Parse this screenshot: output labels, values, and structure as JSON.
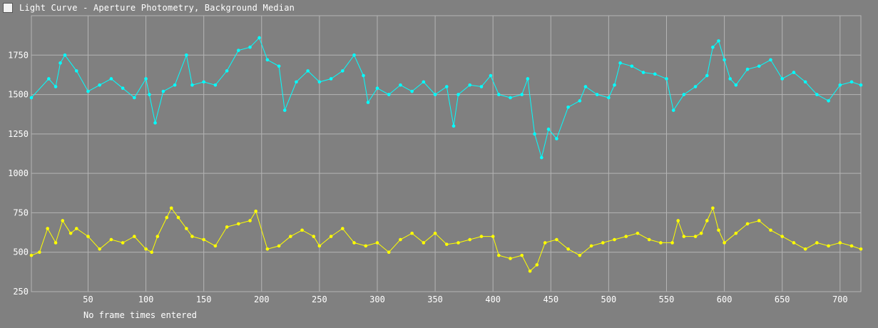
{
  "window": {
    "title": "Light Curve - Aperture Photometry, Background Median"
  },
  "footer": {
    "note": "No frame times entered"
  },
  "colors": {
    "background": "#808080",
    "grid": "#b4b4b4",
    "target": "#00ffff",
    "comparison": "#ffff00",
    "text": "#ffffff"
  },
  "chart_data": {
    "type": "line",
    "title": "Light Curve - Aperture Photometry, Background Median",
    "xlabel": "",
    "ylabel": "",
    "xlim": [
      1,
      718
    ],
    "ylim": [
      250,
      2000
    ],
    "xticks": [
      50,
      100,
      150,
      200,
      250,
      300,
      350,
      400,
      450,
      500,
      550,
      600,
      650,
      700
    ],
    "yticks": [
      250,
      500,
      750,
      1000,
      1250,
      1500,
      1750
    ],
    "grid": true,
    "markers": true,
    "series": [
      {
        "color": "#00ffff",
        "x": [
          1,
          16,
          22,
          26,
          30,
          40,
          50,
          60,
          70,
          80,
          90,
          100,
          103,
          108,
          115,
          125,
          135,
          140,
          150,
          160,
          170,
          180,
          190,
          198,
          205,
          215,
          220,
          230,
          240,
          250,
          260,
          270,
          280,
          288,
          292,
          300,
          310,
          320,
          330,
          340,
          350,
          360,
          366,
          370,
          380,
          390,
          398,
          405,
          415,
          425,
          430,
          436,
          442,
          448,
          455,
          465,
          475,
          480,
          490,
          500,
          505,
          510,
          520,
          530,
          540,
          550,
          556,
          565,
          575,
          585,
          590,
          595,
          600,
          605,
          610,
          620,
          630,
          640,
          650,
          660,
          670,
          680,
          690,
          700,
          710,
          718
        ],
        "values": [
          1480,
          1600,
          1550,
          1700,
          1750,
          1650,
          1520,
          1560,
          1600,
          1540,
          1480,
          1600,
          1500,
          1320,
          1520,
          1560,
          1750,
          1560,
          1580,
          1560,
          1650,
          1780,
          1800,
          1860,
          1720,
          1680,
          1400,
          1580,
          1650,
          1580,
          1600,
          1650,
          1750,
          1620,
          1450,
          1540,
          1500,
          1560,
          1520,
          1580,
          1500,
          1550,
          1300,
          1500,
          1560,
          1550,
          1620,
          1500,
          1480,
          1500,
          1600,
          1250,
          1100,
          1280,
          1220,
          1420,
          1460,
          1550,
          1500,
          1480,
          1560,
          1700,
          1680,
          1640,
          1630,
          1600,
          1400,
          1500,
          1550,
          1620,
          1800,
          1840,
          1720,
          1600,
          1560,
          1660,
          1680,
          1720,
          1600,
          1640,
          1580,
          1500,
          1460,
          1560,
          1580,
          1560
        ]
      },
      {
        "color": "#ffff00",
        "x": [
          1,
          8,
          15,
          22,
          28,
          35,
          40,
          50,
          60,
          70,
          80,
          90,
          100,
          105,
          110,
          118,
          122,
          128,
          135,
          140,
          150,
          160,
          170,
          180,
          190,
          195,
          205,
          215,
          225,
          235,
          245,
          250,
          260,
          270,
          280,
          290,
          300,
          310,
          320,
          330,
          340,
          350,
          360,
          370,
          380,
          390,
          400,
          405,
          415,
          425,
          432,
          438,
          445,
          455,
          465,
          475,
          485,
          495,
          505,
          515,
          525,
          535,
          545,
          555,
          560,
          565,
          575,
          580,
          585,
          590,
          595,
          600,
          610,
          620,
          630,
          640,
          650,
          660,
          670,
          680,
          690,
          700,
          710,
          718
        ],
        "values": [
          480,
          500,
          650,
          560,
          700,
          620,
          650,
          600,
          520,
          580,
          560,
          600,
          520,
          500,
          600,
          720,
          780,
          720,
          650,
          600,
          580,
          540,
          660,
          680,
          700,
          760,
          520,
          540,
          600,
          640,
          600,
          540,
          600,
          650,
          560,
          540,
          560,
          500,
          580,
          620,
          560,
          620,
          550,
          560,
          580,
          600,
          600,
          480,
          460,
          480,
          380,
          420,
          560,
          580,
          520,
          480,
          540,
          560,
          580,
          600,
          620,
          580,
          560,
          560,
          700,
          600,
          600,
          620,
          700,
          780,
          640,
          560,
          620,
          680,
          700,
          640,
          600,
          560,
          520,
          560,
          540,
          560,
          540,
          520
        ]
      }
    ]
  }
}
